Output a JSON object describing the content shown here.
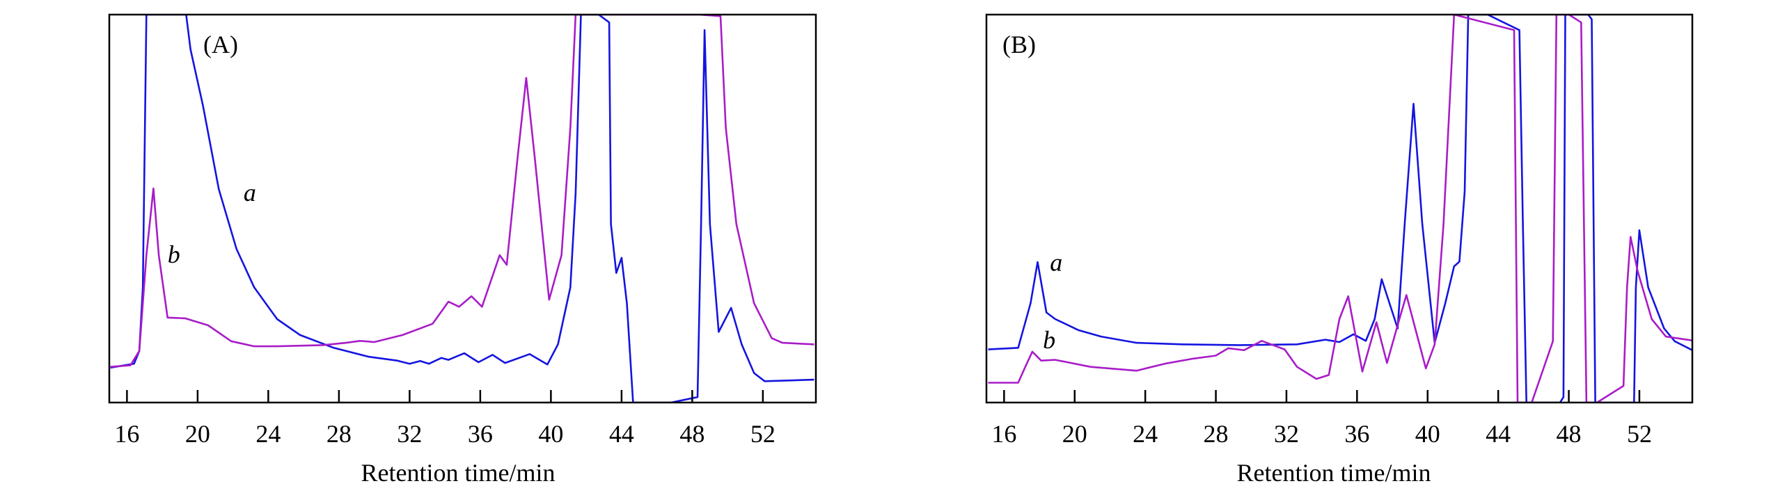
{
  "chart_data": [
    {
      "type": "line",
      "panel_label": "(A)",
      "xlabel": "Retention time/min",
      "ylabel": "",
      "xlim": [
        15,
        55
      ],
      "ylim": [
        0,
        100
      ],
      "y_units": "relative intensity (no axis labels shown)",
      "xticks": [
        16,
        20,
        24,
        28,
        32,
        36,
        40,
        44,
        48,
        52
      ],
      "grid": false,
      "series": [
        {
          "name": "a",
          "color": "#1414e0",
          "label_pos": [
            22.6,
            52
          ],
          "points": [
            [
              15.06,
              9
            ],
            [
              16.4,
              10
            ],
            [
              16.7,
              13.3
            ],
            [
              16.9,
              29.7
            ],
            [
              17.1,
              100
            ],
            [
              19.35,
              100
            ],
            [
              19.6,
              91
            ],
            [
              20.3,
              76.6
            ],
            [
              21.2,
              55
            ],
            [
              22.2,
              39.6
            ],
            [
              23.2,
              29.7
            ],
            [
              24.5,
              21.5
            ],
            [
              25.8,
              17.4
            ],
            [
              27.7,
              14.1
            ],
            [
              29.7,
              11.8
            ],
            [
              31.3,
              10.8
            ],
            [
              32,
              10
            ],
            [
              32.6,
              10.7
            ],
            [
              33.1,
              10
            ],
            [
              33.8,
              11.5
            ],
            [
              34.2,
              11
            ],
            [
              35.1,
              12.7
            ],
            [
              35.9,
              10.4
            ],
            [
              36.7,
              12.3
            ],
            [
              37.4,
              10.2
            ],
            [
              38.8,
              12.5
            ],
            [
              39.8,
              9.8
            ],
            [
              40.4,
              15
            ],
            [
              41.1,
              29.7
            ],
            [
              41.4,
              54
            ],
            [
              41.7,
              100
            ],
            [
              42.7,
              100
            ],
            [
              43.3,
              98
            ],
            [
              43.4,
              46
            ],
            [
              43.7,
              33.4
            ],
            [
              44.0,
              37.3
            ],
            [
              44.3,
              25.6
            ],
            [
              44.65,
              0
            ],
            [
              46.8,
              0
            ],
            [
              48.3,
              1.4
            ],
            [
              48.5,
              46
            ],
            [
              48.7,
              96
            ],
            [
              49.0,
              46
            ],
            [
              49.5,
              18.2
            ],
            [
              50.2,
              24.4
            ],
            [
              50.8,
              15
            ],
            [
              51.5,
              7.6
            ],
            [
              52.1,
              5.5
            ],
            [
              54.9,
              5.9
            ]
          ]
        },
        {
          "name": "b",
          "color": "#a81cc8",
          "label_pos": [
            18.3,
            36
          ],
          "points": [
            [
              15.06,
              9.2
            ],
            [
              16.2,
              9.6
            ],
            [
              16.7,
              13.3
            ],
            [
              17.1,
              38
            ],
            [
              17.5,
              55.2
            ],
            [
              17.8,
              38
            ],
            [
              18.3,
              21.9
            ],
            [
              19.3,
              21.7
            ],
            [
              20.6,
              19.9
            ],
            [
              21.9,
              15.8
            ],
            [
              23.2,
              14.5
            ],
            [
              24.5,
              14.5
            ],
            [
              27.1,
              14.8
            ],
            [
              28.4,
              15.4
            ],
            [
              29.2,
              15.9
            ],
            [
              30,
              15.6
            ],
            [
              31.6,
              17.4
            ],
            [
              33.3,
              20.3
            ],
            [
              34.2,
              26
            ],
            [
              34.8,
              24.7
            ],
            [
              35.5,
              27.4
            ],
            [
              36.1,
              24.7
            ],
            [
              37.1,
              38
            ],
            [
              37.5,
              35.5
            ],
            [
              38.1,
              62.6
            ],
            [
              38.6,
              83.7
            ],
            [
              39.1,
              62.6
            ],
            [
              39.9,
              26.5
            ],
            [
              40.6,
              38
            ],
            [
              41.1,
              70.8
            ],
            [
              41.4,
              100
            ],
            [
              48.4,
              100
            ],
            [
              49.6,
              99.6
            ],
            [
              49.9,
              70.8
            ],
            [
              50.5,
              46
            ],
            [
              51.5,
              25.6
            ],
            [
              52.5,
              16.6
            ],
            [
              53.1,
              15.4
            ],
            [
              54.9,
              15
            ]
          ]
        }
      ]
    },
    {
      "type": "line",
      "panel_label": "(B)",
      "xlabel": "Retention time/min",
      "ylabel": "",
      "xlim": [
        15,
        55
      ],
      "ylim": [
        0,
        100
      ],
      "y_units": "relative intensity (no axis labels shown)",
      "xticks": [
        16,
        20,
        24,
        28,
        32,
        36,
        40,
        44,
        48,
        52
      ],
      "grid": false,
      "series": [
        {
          "name": "a",
          "color": "#1414e0",
          "label_pos": [
            18.6,
            34
          ],
          "points": [
            [
              15.1,
              13.7
            ],
            [
              16.8,
              14.1
            ],
            [
              17.5,
              25.6
            ],
            [
              17.9,
              36.2
            ],
            [
              18.4,
              23.2
            ],
            [
              18.9,
              21.5
            ],
            [
              20.2,
              18.7
            ],
            [
              21.5,
              17
            ],
            [
              23.5,
              15.4
            ],
            [
              26.1,
              15
            ],
            [
              29.3,
              14.8
            ],
            [
              32.6,
              15
            ],
            [
              34.2,
              16.2
            ],
            [
              35,
              15.6
            ],
            [
              35.8,
              17.6
            ],
            [
              36.5,
              15.9
            ],
            [
              37,
              21.5
            ],
            [
              37.4,
              31.8
            ],
            [
              38.3,
              19.1
            ],
            [
              38.7,
              46
            ],
            [
              39.2,
              77
            ],
            [
              39.7,
              46
            ],
            [
              40.4,
              15.4
            ],
            [
              41,
              25.6
            ],
            [
              41.5,
              35.1
            ],
            [
              41.8,
              36.3
            ],
            [
              42.1,
              54.4
            ],
            [
              42.3,
              100
            ],
            [
              43.4,
              100
            ],
            [
              45.2,
              96
            ],
            [
              45.4,
              46
            ],
            [
              45.6,
              0
            ],
            [
              47.5,
              0
            ],
            [
              47.7,
              1.4
            ],
            [
              47.8,
              100
            ],
            [
              49.1,
              100
            ],
            [
              49.3,
              98.8
            ],
            [
              49.5,
              0
            ],
            [
              51.7,
              0
            ],
            [
              51.8,
              29.7
            ],
            [
              52,
              44.4
            ],
            [
              52.5,
              29.7
            ],
            [
              53.4,
              19.1
            ],
            [
              54,
              15.8
            ],
            [
              55,
              13.5
            ]
          ]
        },
        {
          "name": "b",
          "color": "#a81cc8",
          "label_pos": [
            18.2,
            14
          ],
          "points": [
            [
              15.1,
              5.1
            ],
            [
              16.8,
              5.1
            ],
            [
              17.2,
              9.2
            ],
            [
              17.6,
              13.1
            ],
            [
              18.1,
              10.8
            ],
            [
              18.9,
              11
            ],
            [
              20.9,
              9.2
            ],
            [
              23.5,
              8.2
            ],
            [
              25.1,
              10
            ],
            [
              26.7,
              11.3
            ],
            [
              28,
              12.1
            ],
            [
              28.7,
              14
            ],
            [
              29.6,
              13.5
            ],
            [
              30.6,
              15.9
            ],
            [
              31.9,
              13.7
            ],
            [
              32.6,
              9.2
            ],
            [
              33.7,
              6.1
            ],
            [
              34.4,
              7.1
            ],
            [
              35,
              21.5
            ],
            [
              35.5,
              27.4
            ],
            [
              36.3,
              8
            ],
            [
              37.1,
              20.7
            ],
            [
              37.7,
              10.2
            ],
            [
              38.4,
              21.5
            ],
            [
              38.8,
              27.7
            ],
            [
              39.9,
              8.8
            ],
            [
              40.4,
              15
            ],
            [
              40.9,
              46
            ],
            [
              41.5,
              100
            ],
            [
              44.9,
              96
            ],
            [
              45.1,
              0
            ],
            [
              45.9,
              0
            ],
            [
              47.1,
              15.8
            ],
            [
              47.3,
              100
            ],
            [
              48,
              100
            ],
            [
              48.7,
              98
            ],
            [
              49,
              0
            ],
            [
              49.6,
              0
            ],
            [
              51.1,
              4.3
            ],
            [
              51.3,
              29.7
            ],
            [
              51.5,
              42.7
            ],
            [
              51.9,
              33.9
            ],
            [
              52.7,
              21.5
            ],
            [
              53.5,
              17
            ],
            [
              55,
              16
            ]
          ]
        }
      ]
    }
  ]
}
